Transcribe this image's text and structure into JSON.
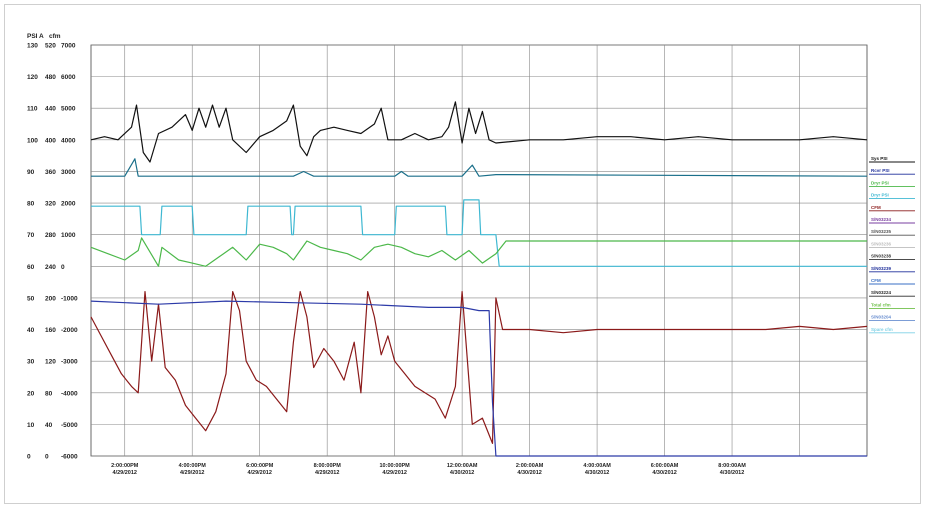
{
  "chart_data": {
    "type": "line",
    "axis_headers": [
      "PSI A",
      "cfm"
    ],
    "y_tick_labels": [
      [
        "130",
        "520",
        "7000"
      ],
      [
        "120",
        "480",
        "6000"
      ],
      [
        "110",
        "440",
        "5000"
      ],
      [
        "100",
        "400",
        "4000"
      ],
      [
        "90",
        "360",
        "3000"
      ],
      [
        "80",
        "320",
        "2000"
      ],
      [
        "70",
        "280",
        "1000"
      ],
      [
        "60",
        "240",
        "0"
      ],
      [
        "50",
        "200",
        "-1000"
      ],
      [
        "40",
        "160",
        "-2000"
      ],
      [
        "30",
        "120",
        "-3000"
      ],
      [
        "20",
        "80",
        "-4000"
      ],
      [
        "10",
        "40",
        "-5000"
      ],
      [
        "0",
        "0",
        "-6000"
      ]
    ],
    "x_tick_labels": [
      {
        "time": "2:00:00PM",
        "date": "4/29/2012"
      },
      {
        "time": "4:00:00PM",
        "date": "4/29/2012"
      },
      {
        "time": "6:00:00PM",
        "date": "4/29/2012"
      },
      {
        "time": "8:00:00PM",
        "date": "4/29/2012"
      },
      {
        "time": "10:00:00PM",
        "date": "4/29/2012"
      },
      {
        "time": "12:00:00AM",
        "date": "4/30/2012"
      },
      {
        "time": "2:00:00AM",
        "date": "4/30/2012"
      },
      {
        "time": "4:00:00AM",
        "date": "4/30/2012"
      },
      {
        "time": "6:00:00AM",
        "date": "4/30/2012"
      },
      {
        "time": "8:00:00AM",
        "date": "4/30/2012"
      }
    ],
    "x_range_hours": [
      0,
      23
    ],
    "y_range_psi": [
      0,
      130
    ],
    "grid": true,
    "legend_position": "right",
    "legend": [
      {
        "label": "Sys PSI",
        "color": "#111111"
      },
      {
        "label": "Rcvr PSI",
        "color": "#1f2f9a"
      },
      {
        "label": "Dryr PSI",
        "color": "#4cb84a"
      },
      {
        "label": "Dryr PSI",
        "color": "#3fb8d2"
      },
      {
        "label": "CFM",
        "color": "#8b1a1a"
      },
      {
        "label": "S/N03234",
        "color": "#7a3fa0"
      },
      {
        "label": "S/N03235",
        "color": "#555555"
      },
      {
        "label": "S/N03236",
        "color": "#bdbdbd"
      },
      {
        "label": "S/N03238",
        "color": "#333333"
      },
      {
        "label": "S/N03239",
        "color": "#1f2f9a"
      },
      {
        "label": "CFM",
        "color": "#3a6fc4"
      },
      {
        "label": "S/N03224",
        "color": "#2a2a2a"
      },
      {
        "label": "Total cfm",
        "color": "#6fbf4a"
      },
      {
        "label": "S/N03204",
        "color": "#6a8fd0"
      },
      {
        "label": "Spare cfm",
        "color": "#7fd1e6"
      }
    ],
    "series": [
      {
        "color": "#111111",
        "x": [
          0,
          0.4,
          0.8,
          1.2,
          1.35,
          1.55,
          1.75,
          2.0,
          2.4,
          2.8,
          3.0,
          3.2,
          3.4,
          3.6,
          3.8,
          4.0,
          4.2,
          4.6,
          5.0,
          5.4,
          5.8,
          6.0,
          6.2,
          6.4,
          6.6,
          6.8,
          7.2,
          7.6,
          8.0,
          8.4,
          8.6,
          8.8,
          9.2,
          9.6,
          10.0,
          10.4,
          10.6,
          10.8,
          11.0,
          11.2,
          11.4,
          11.6,
          11.8,
          12.0,
          13,
          14,
          15,
          16,
          17,
          18,
          19,
          20,
          21,
          22,
          23
        ],
        "y": [
          100,
          101,
          100,
          104,
          111,
          96,
          93,
          102,
          104,
          108,
          103,
          110,
          104,
          111,
          104,
          110,
          100,
          96,
          101,
          103,
          106,
          111,
          98,
          95,
          101,
          103,
          104,
          103,
          102,
          105,
          110,
          100,
          100,
          102,
          100,
          101,
          104,
          112,
          99,
          110,
          102,
          109,
          100,
          99,
          100,
          100,
          101,
          101,
          100,
          101,
          100,
          100,
          100,
          101,
          100
        ]
      },
      {
        "color": "#1a6f8a",
        "x": [
          0,
          1.0,
          1.3,
          1.4,
          1.6,
          2,
          4,
          6.0,
          6.3,
          6.6,
          8,
          9.0,
          9.2,
          9.4,
          11.0,
          11.3,
          11.5,
          12.0,
          23
        ],
        "y": [
          88.5,
          88.5,
          94,
          88.5,
          88.5,
          88.5,
          88.5,
          88.5,
          90,
          88.5,
          88.5,
          88.5,
          90,
          88.5,
          88.5,
          92,
          88.5,
          89,
          88.5
        ]
      },
      {
        "color": "#3fb8d2",
        "x": [
          0,
          1.45,
          1.5,
          2.05,
          2.1,
          3.0,
          3.05,
          4.6,
          4.65,
          5.9,
          5.95,
          6.0,
          6.05,
          8.0,
          8.05,
          9.0,
          9.05,
          10.5,
          10.55,
          11.0,
          11.05,
          11.5,
          11.55,
          12.0,
          12.1,
          23
        ],
        "y": [
          79,
          79,
          70,
          70,
          79,
          79,
          70,
          70,
          79,
          79,
          70,
          70,
          79,
          79,
          70,
          70,
          79,
          79,
          70,
          70,
          81,
          81,
          70,
          70,
          60,
          60
        ]
      },
      {
        "color": "#4cb84a",
        "x": [
          0,
          0.5,
          1.0,
          1.4,
          1.5,
          2.0,
          2.1,
          2.6,
          3.0,
          3.4,
          3.8,
          4.2,
          4.6,
          5.0,
          5.4,
          5.8,
          6.0,
          6.4,
          6.8,
          7.2,
          7.6,
          8.0,
          8.4,
          8.8,
          9.2,
          9.6,
          10.0,
          10.4,
          10.8,
          11.2,
          11.6,
          12.0,
          12.3,
          23
        ],
        "y": [
          66,
          64,
          62,
          65,
          69,
          60,
          66,
          62,
          61,
          60,
          63,
          66,
          62,
          67,
          66,
          64,
          62,
          68,
          66,
          65,
          64,
          62,
          66,
          67,
          66,
          64,
          63,
          65,
          62,
          65,
          61,
          64,
          68,
          68
        ]
      },
      {
        "color": "#8b1a1a",
        "x": [
          0,
          0.3,
          0.6,
          0.9,
          1.2,
          1.4,
          1.6,
          1.8,
          2.0,
          2.2,
          2.5,
          2.8,
          3.1,
          3.4,
          3.7,
          4.0,
          4.2,
          4.4,
          4.6,
          4.9,
          5.2,
          5.5,
          5.8,
          6.0,
          6.2,
          6.4,
          6.6,
          6.9,
          7.2,
          7.5,
          7.8,
          8.0,
          8.2,
          8.4,
          8.6,
          8.8,
          9.0,
          9.3,
          9.6,
          9.9,
          10.2,
          10.5,
          10.8,
          11.0,
          11.3,
          11.6,
          11.9,
          12.0,
          12.2,
          13,
          14,
          15,
          16,
          17,
          18,
          19,
          20,
          21,
          22,
          23
        ],
        "y": [
          44,
          38,
          32,
          26,
          22,
          20,
          52,
          30,
          48,
          28,
          24,
          16,
          12,
          8,
          14,
          26,
          52,
          46,
          30,
          24,
          22,
          18,
          14,
          36,
          52,
          44,
          28,
          34,
          30,
          24,
          36,
          20,
          52,
          44,
          32,
          38,
          30,
          26,
          22,
          20,
          18,
          12,
          22,
          52,
          10,
          12,
          4,
          50,
          40,
          40,
          39,
          40,
          40,
          40,
          40,
          40,
          40,
          41,
          40,
          41
        ]
      },
      {
        "color": "#2c3aa8",
        "x": [
          0,
          2,
          4,
          6,
          8,
          10,
          11.0,
          11.5,
          11.8,
          11.9,
          12.0,
          13,
          23
        ],
        "y": [
          49,
          48,
          49,
          48.5,
          48,
          47,
          47,
          46,
          46,
          17,
          0,
          0,
          0
        ]
      }
    ]
  }
}
